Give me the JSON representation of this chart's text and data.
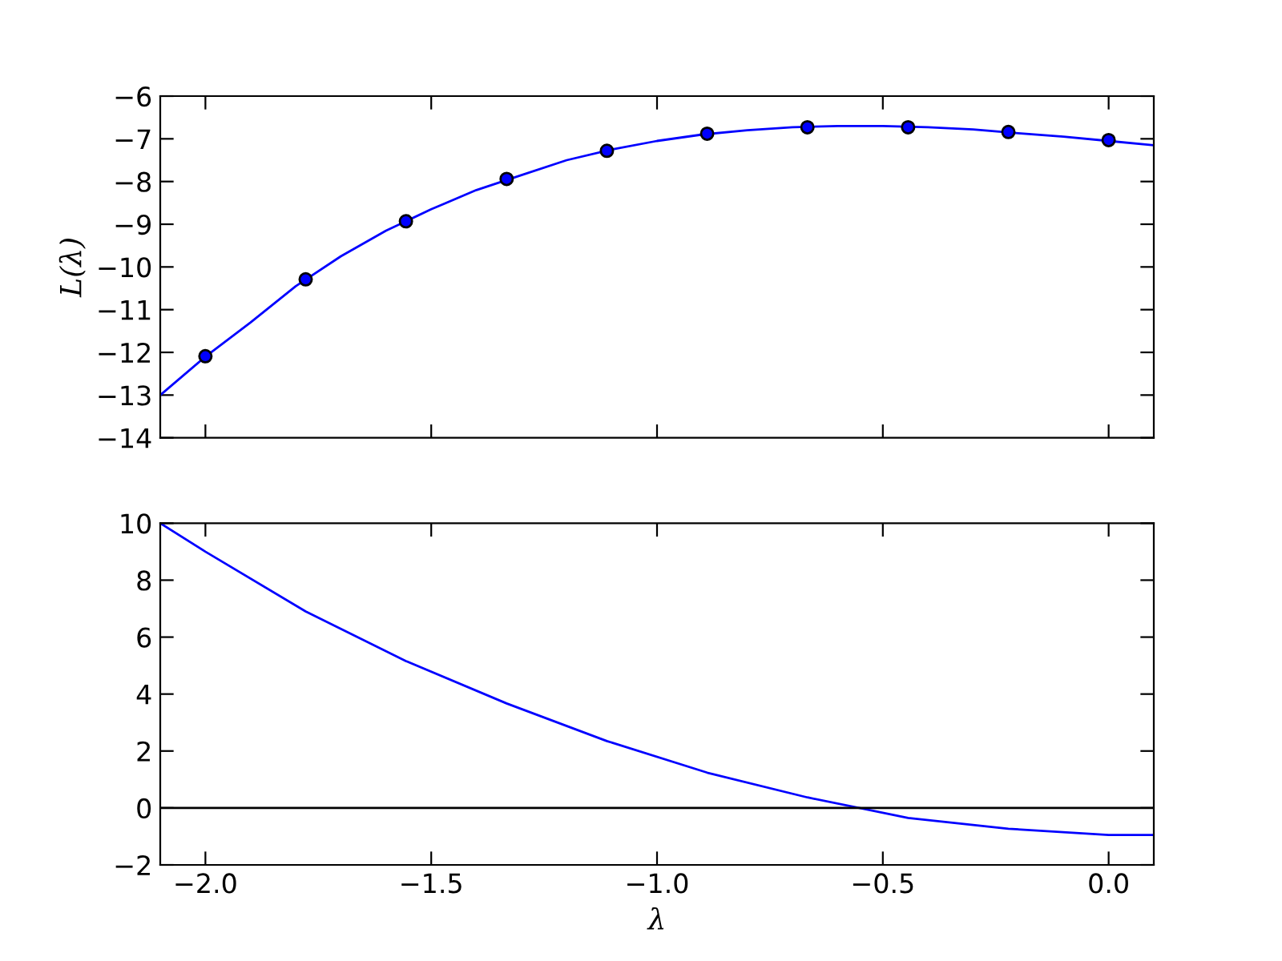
{
  "chart_data": [
    {
      "type": "line",
      "ylabel": "L(λ)",
      "xlim": [
        -2.1,
        0.1
      ],
      "xticks": [
        {
          "value": -2.0,
          "label": null
        },
        {
          "value": -1.5,
          "label": null
        },
        {
          "value": -1.0,
          "label": null
        },
        {
          "value": -0.5,
          "label": null
        },
        {
          "value": 0.0,
          "label": null
        }
      ],
      "ylim": [
        -14,
        -6
      ],
      "yticks": [
        {
          "value": -14,
          "label": "−14"
        },
        {
          "value": -13,
          "label": "−13"
        },
        {
          "value": -12,
          "label": "−12"
        },
        {
          "value": -11,
          "label": "−11"
        },
        {
          "value": -10,
          "label": "−10"
        },
        {
          "value": -9,
          "label": "−9"
        },
        {
          "value": -8,
          "label": "−8"
        },
        {
          "value": -7,
          "label": "−7"
        },
        {
          "value": -6,
          "label": "−6"
        }
      ],
      "tick_labels": "y",
      "grid": false,
      "series": [
        {
          "color": "#0000ff",
          "marker": "none",
          "x": [
            -2.1,
            -2.0,
            -1.9,
            -1.8,
            -1.7,
            -1.6,
            -1.5,
            -1.4,
            -1.3,
            -1.2,
            -1.1,
            -1.0,
            -0.9,
            -0.8,
            -0.7,
            -0.6,
            -0.5,
            -0.4,
            -0.3,
            -0.2,
            -0.1,
            0.0,
            0.1
          ],
          "values": [
            -13.0,
            -12.1,
            -11.3,
            -10.45,
            -9.75,
            -9.15,
            -8.65,
            -8.2,
            -7.85,
            -7.5,
            -7.25,
            -7.05,
            -6.9,
            -6.8,
            -6.73,
            -6.7,
            -6.7,
            -6.73,
            -6.78,
            -6.87,
            -6.95,
            -7.05,
            -7.15
          ]
        },
        {
          "type": "scatter",
          "color": "#0000ff",
          "marker": "circle",
          "x": [
            -2.0,
            -1.778,
            -1.556,
            -1.333,
            -1.111,
            -0.889,
            -0.667,
            -0.444,
            -0.222,
            0.0
          ],
          "values": [
            -12.09,
            -10.29,
            -8.93,
            -7.94,
            -7.28,
            -6.88,
            -6.73,
            -6.73,
            -6.84,
            -7.03
          ]
        }
      ]
    },
    {
      "type": "line",
      "xlabel": "λ",
      "xlim": [
        -2.1,
        0.1
      ],
      "xticks": [
        {
          "value": -2.0,
          "label": "−2.0"
        },
        {
          "value": -1.5,
          "label": "−1.5"
        },
        {
          "value": -1.0,
          "label": "−1.0"
        },
        {
          "value": -0.5,
          "label": "−0.5"
        },
        {
          "value": 0.0,
          "label": "0.0"
        }
      ],
      "ylim": [
        -2,
        10
      ],
      "yticks": [
        {
          "value": -2,
          "label": "−2"
        },
        0,
        2,
        4,
        6,
        8,
        10
      ],
      "grid": false,
      "ref_lines": [
        {
          "axis": "y",
          "value": 0,
          "color": "#000000",
          "line_style": "solid"
        }
      ],
      "series": [
        {
          "color": "#0000ff",
          "marker": "none",
          "x": [
            -2.1,
            -2.0,
            -1.778,
            -1.556,
            -1.333,
            -1.111,
            -0.889,
            -0.667,
            -0.444,
            -0.222,
            0.0,
            0.1
          ],
          "values": [
            10.0,
            9.0,
            6.9,
            5.16,
            3.67,
            2.35,
            1.24,
            0.37,
            -0.35,
            -0.73,
            -0.95,
            -0.95
          ]
        }
      ]
    }
  ]
}
